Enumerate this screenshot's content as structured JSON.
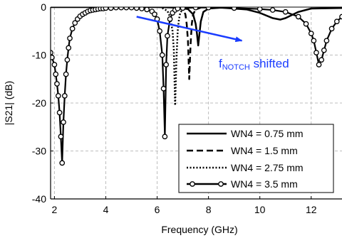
{
  "chart_data": {
    "type": "line",
    "xlabel": "Frequency (GHz)",
    "ylabel": "|S21| (dB)",
    "xlim": [
      1.85,
      13.2
    ],
    "ylim": [
      -40,
      0
    ],
    "xticks": [
      2,
      4,
      6,
      8,
      10,
      12
    ],
    "yticks": [
      0,
      -10,
      -20,
      -30,
      -40
    ],
    "grid": true,
    "legend_position": "bottom-right",
    "annotation": {
      "f_main": "f",
      "f_sub": "NOTCH",
      "text": " shifted",
      "color": "#1a3cff",
      "arrow_from": [
        5.2,
        -2.0
      ],
      "arrow_to": [
        9.3,
        -7.0
      ]
    },
    "series": [
      {
        "name": "WN4 = 0.75 mm",
        "style": "solid",
        "x": [
          1.85,
          3.0,
          4.0,
          5.0,
          6.0,
          6.8,
          7.2,
          7.4,
          7.5,
          7.55,
          7.6,
          7.65,
          7.7,
          7.8,
          8.0,
          8.5,
          9.5,
          10.0,
          10.5,
          10.8,
          11.0,
          11.5,
          12.0,
          13.2
        ],
        "y": [
          0,
          0,
          0,
          0,
          0,
          -0.1,
          -0.4,
          -1.5,
          -3.5,
          -5.5,
          -8.0,
          -5.5,
          -3.0,
          -1.0,
          -0.3,
          -0.1,
          -0.5,
          -1.2,
          -2.3,
          -2.6,
          -2.3,
          -1.0,
          -0.3,
          -0.2
        ]
      },
      {
        "name": "WN4 = 1.5 mm",
        "style": "dashed",
        "x": [
          6.8,
          7.0,
          7.1,
          7.15,
          7.2,
          7.25,
          7.3,
          7.35,
          7.4,
          7.5,
          7.7
        ],
        "y": [
          -0.1,
          -0.5,
          -1.5,
          -3.5,
          -7.0,
          -15.0,
          -8.0,
          -3.5,
          -1.5,
          -0.5,
          -0.1
        ]
      },
      {
        "name": "WN4 = 2.75 mm",
        "style": "dotted",
        "x": [
          6.2,
          6.4,
          6.5,
          6.6,
          6.65,
          6.7,
          6.75,
          6.8,
          6.85,
          6.9,
          7.0,
          7.1
        ],
        "y": [
          -0.2,
          -0.8,
          -2.0,
          -5.0,
          -9.0,
          -20.5,
          -11.0,
          -5.0,
          -2.5,
          -1.2,
          -0.4,
          -0.1
        ]
      },
      {
        "name": "WN4 = 3.5 mm",
        "style": "solid-circles",
        "x": [
          1.85,
          1.9,
          2.0,
          2.05,
          2.1,
          2.15,
          2.2,
          2.25,
          2.3,
          2.35,
          2.4,
          2.45,
          2.5,
          2.55,
          2.6,
          2.7,
          2.8,
          2.9,
          3.0,
          3.1,
          3.2,
          3.3,
          3.4,
          3.5,
          3.6,
          3.7,
          3.8,
          3.9,
          4.0,
          4.2,
          4.4,
          4.6,
          4.8,
          5.0,
          5.2,
          5.4,
          5.6,
          5.8,
          5.9,
          6.0,
          6.1,
          6.2,
          6.25,
          6.3,
          6.35,
          6.4,
          6.5,
          6.6,
          6.7,
          6.8,
          7.0,
          7.5,
          8.0,
          9.0,
          10.0,
          10.5,
          11.0,
          11.5,
          11.8,
          12.0,
          12.1,
          12.2,
          12.3,
          12.4,
          12.5,
          12.6,
          12.8,
          13.0,
          13.2
        ],
        "y": [
          -9.5,
          -10.5,
          -12.0,
          -14.0,
          -16.0,
          -18.5,
          -22.0,
          -27.0,
          -32.5,
          -24.0,
          -18.5,
          -14.0,
          -11.0,
          -8.5,
          -6.5,
          -4.5,
          -3.3,
          -2.5,
          -1.9,
          -1.5,
          -1.2,
          -0.9,
          -0.7,
          -0.6,
          -0.5,
          -0.4,
          -0.3,
          -0.3,
          -0.2,
          -0.2,
          -0.1,
          -0.1,
          -0.1,
          -0.1,
          -0.2,
          -0.3,
          -0.5,
          -0.9,
          -1.5,
          -2.5,
          -5.0,
          -10.0,
          -17.0,
          -27.0,
          -12.0,
          -6.0,
          -2.5,
          -1.2,
          -0.6,
          -0.3,
          -0.2,
          -0.1,
          -0.1,
          -0.2,
          -0.4,
          -0.6,
          -1.0,
          -2.0,
          -3.5,
          -5.5,
          -7.0,
          -9.5,
          -12.0,
          -11.0,
          -9.0,
          -7.0,
          -4.5,
          -3.0,
          -2.0
        ]
      }
    ]
  }
}
